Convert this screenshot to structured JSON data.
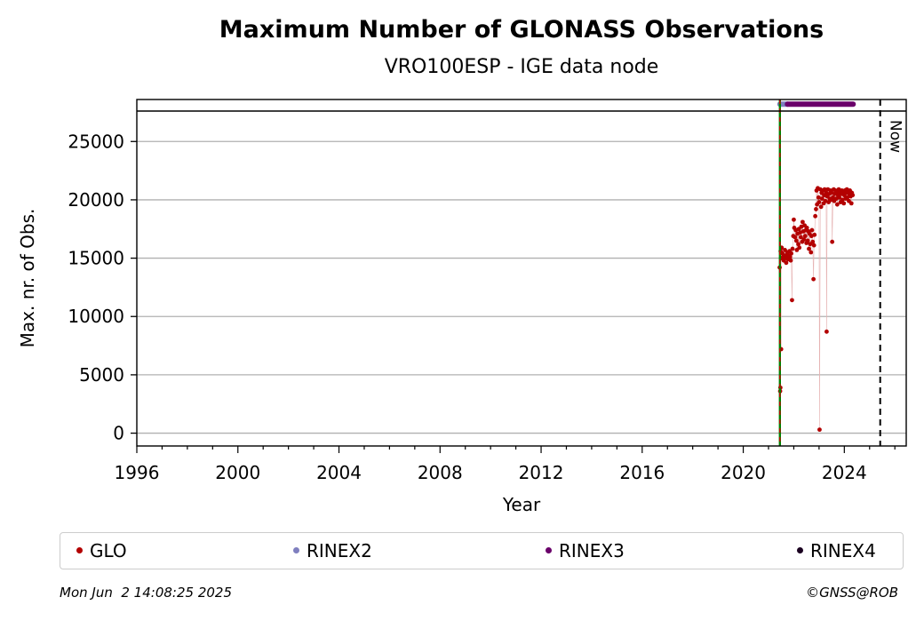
{
  "chart_data": {
    "type": "scatter",
    "title": "Maximum Number of GLONASS Observations",
    "subtitle": "VRO100ESP - IGE data node",
    "xlabel": "Year",
    "ylabel": "Max. nr. of Obs.",
    "xlim": [
      1996.0,
      2026.45
    ],
    "ylim": [
      -1100,
      28600
    ],
    "x_ticks": [
      "1996",
      "2000",
      "2004",
      "2008",
      "2012",
      "2016",
      "2020",
      "2024"
    ],
    "y_ticks": [
      "0",
      "5000",
      "10000",
      "15000",
      "20000",
      "25000"
    ],
    "grid": "horizontal",
    "now_label": "Now",
    "now_x": 2025.42,
    "start_x": 2021.45,
    "colors": {
      "glo": "#b30000",
      "rinex2": "#7f7fbf",
      "rinex3": "#6a006a",
      "rinex4": "#1a0020",
      "start_line_green": "#008000",
      "start_line_red": "#cc0000",
      "grid": "#b0b0b0"
    },
    "rinex_bar": {
      "y": 28200,
      "rinex2": [
        2021.45,
        2021.75
      ],
      "rinex3": [
        2021.75,
        2024.35
      ]
    },
    "series": [
      {
        "name": "GLO",
        "points": [
          [
            2021.46,
            3600
          ],
          [
            2021.47,
            3900
          ],
          [
            2021.5,
            7200
          ],
          [
            2021.44,
            14200
          ],
          [
            2021.48,
            15600
          ],
          [
            2021.5,
            15000
          ],
          [
            2021.52,
            15900
          ],
          [
            2021.55,
            15400
          ],
          [
            2021.58,
            15100
          ],
          [
            2021.6,
            14800
          ],
          [
            2021.63,
            15200
          ],
          [
            2021.65,
            15700
          ],
          [
            2021.68,
            15000
          ],
          [
            2021.7,
            14600
          ],
          [
            2021.72,
            15300
          ],
          [
            2021.75,
            15500
          ],
          [
            2021.78,
            14900
          ],
          [
            2021.8,
            15200
          ],
          [
            2021.83,
            15600
          ],
          [
            2021.85,
            15100
          ],
          [
            2021.88,
            14800
          ],
          [
            2021.9,
            15400
          ],
          [
            2021.93,
            11400
          ],
          [
            2021.95,
            15800
          ],
          [
            2021.98,
            16900
          ],
          [
            2022.0,
            18300
          ],
          [
            2022.02,
            17600
          ],
          [
            2022.05,
            16800
          ],
          [
            2022.08,
            17400
          ],
          [
            2022.1,
            16500
          ],
          [
            2022.12,
            15700
          ],
          [
            2022.15,
            17100
          ],
          [
            2022.18,
            16200
          ],
          [
            2022.2,
            17500
          ],
          [
            2022.22,
            15900
          ],
          [
            2022.25,
            17200
          ],
          [
            2022.28,
            16800
          ],
          [
            2022.3,
            17700
          ],
          [
            2022.33,
            16400
          ],
          [
            2022.35,
            18100
          ],
          [
            2022.38,
            17300
          ],
          [
            2022.4,
            16600
          ],
          [
            2022.43,
            17800
          ],
          [
            2022.45,
            16900
          ],
          [
            2022.48,
            17400
          ],
          [
            2022.5,
            16300
          ],
          [
            2022.52,
            17600
          ],
          [
            2022.55,
            16500
          ],
          [
            2022.58,
            17300
          ],
          [
            2022.6,
            15800
          ],
          [
            2022.62,
            17100
          ],
          [
            2022.65,
            16200
          ],
          [
            2022.68,
            15500
          ],
          [
            2022.7,
            16900
          ],
          [
            2022.72,
            17400
          ],
          [
            2022.75,
            16400
          ],
          [
            2022.78,
            13200
          ],
          [
            2022.8,
            16100
          ],
          [
            2022.82,
            17000
          ],
          [
            2022.85,
            18600
          ],
          [
            2022.88,
            19200
          ],
          [
            2022.9,
            20800
          ],
          [
            2022.92,
            19600
          ],
          [
            2022.95,
            21000
          ],
          [
            2022.98,
            20200
          ],
          [
            2023.0,
            19800
          ],
          [
            2023.02,
            300
          ],
          [
            2023.05,
            20900
          ],
          [
            2023.08,
            19400
          ],
          [
            2023.1,
            20600
          ],
          [
            2023.12,
            20100
          ],
          [
            2023.15,
            20800
          ],
          [
            2023.18,
            19700
          ],
          [
            2023.2,
            20400
          ],
          [
            2023.22,
            20900
          ],
          [
            2023.25,
            19900
          ],
          [
            2023.28,
            20600
          ],
          [
            2023.3,
            8700
          ],
          [
            2023.32,
            20300
          ],
          [
            2023.35,
            20900
          ],
          [
            2023.38,
            19800
          ],
          [
            2023.4,
            20500
          ],
          [
            2023.42,
            20100
          ],
          [
            2023.45,
            20800
          ],
          [
            2023.48,
            20000
          ],
          [
            2023.5,
            20600
          ],
          [
            2023.52,
            16400
          ],
          [
            2023.55,
            20200
          ],
          [
            2023.58,
            20900
          ],
          [
            2023.6,
            19900
          ],
          [
            2023.62,
            20500
          ],
          [
            2023.65,
            20800
          ],
          [
            2023.68,
            20100
          ],
          [
            2023.7,
            20700
          ],
          [
            2023.72,
            19600
          ],
          [
            2023.75,
            20400
          ],
          [
            2023.78,
            20900
          ],
          [
            2023.8,
            20200
          ],
          [
            2023.82,
            20600
          ],
          [
            2023.85,
            19800
          ],
          [
            2023.88,
            20500
          ],
          [
            2023.9,
            20800
          ],
          [
            2023.92,
            20000
          ],
          [
            2023.95,
            20700
          ],
          [
            2023.98,
            19700
          ],
          [
            2024.0,
            20400
          ],
          [
            2024.02,
            20800
          ],
          [
            2024.05,
            20100
          ],
          [
            2024.08,
            20600
          ],
          [
            2024.1,
            20900
          ],
          [
            2024.12,
            20200
          ],
          [
            2024.15,
            20700
          ],
          [
            2024.18,
            19900
          ],
          [
            2024.2,
            20500
          ],
          [
            2024.22,
            20800
          ],
          [
            2024.25,
            20300
          ],
          [
            2024.28,
            19700
          ],
          [
            2024.3,
            20600
          ],
          [
            2024.33,
            20400
          ]
        ]
      },
      {
        "name": "RINEX2"
      },
      {
        "name": "RINEX3"
      },
      {
        "name": "RINEX4"
      }
    ]
  },
  "legend": {
    "items": [
      {
        "label": "GLO",
        "color": "#b30000"
      },
      {
        "label": "RINEX2",
        "color": "#7f7fbf"
      },
      {
        "label": "RINEX3",
        "color": "#6a006a"
      },
      {
        "label": "RINEX4",
        "color": "#1a0020"
      }
    ]
  },
  "footer": {
    "timestamp": "Mon Jun  2 14:08:25 2025",
    "credit": "©GNSS@ROB"
  }
}
